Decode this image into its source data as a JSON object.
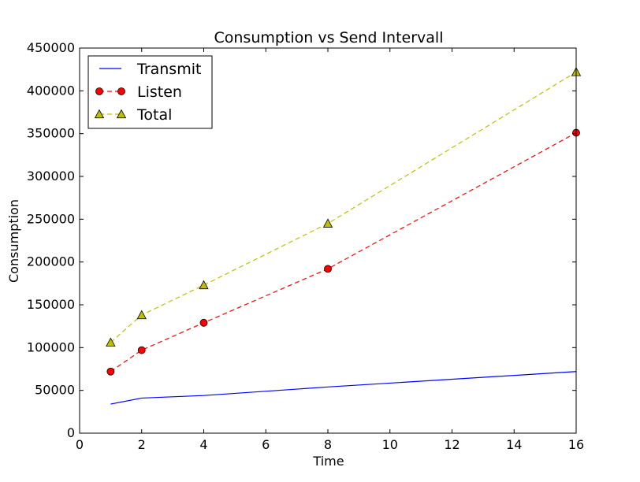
{
  "chart_data": {
    "type": "line",
    "title": "Consumption vs Send Intervall",
    "xlabel": "Time",
    "ylabel": "Consumption",
    "xlim": [
      0,
      16
    ],
    "ylim": [
      0,
      450000
    ],
    "x_ticks": [
      0,
      2,
      4,
      6,
      8,
      10,
      12,
      14,
      16
    ],
    "y_ticks": [
      0,
      50000,
      100000,
      150000,
      200000,
      250000,
      300000,
      350000,
      400000,
      450000
    ],
    "x": [
      1,
      2,
      4,
      8,
      16
    ],
    "grid": false,
    "legend_position": "top-left",
    "series": [
      {
        "name": "Transmit",
        "values": [
          34000,
          41000,
          44000,
          54000,
          72000
        ],
        "color": "#0000ff",
        "line_style": "solid",
        "marker": "none"
      },
      {
        "name": "Listen",
        "values": [
          72000,
          97000,
          129000,
          192000,
          351000
        ],
        "color": "#ff0000",
        "line_style": "dashed",
        "marker": "circle"
      },
      {
        "name": "Total",
        "values": [
          106000,
          138000,
          173000,
          245000,
          422000
        ],
        "color": "#bfbf00",
        "line_style": "dashed",
        "marker": "triangle"
      }
    ]
  }
}
